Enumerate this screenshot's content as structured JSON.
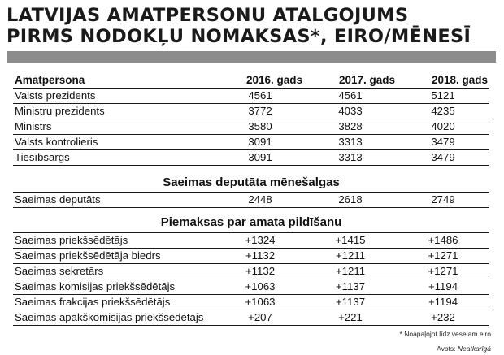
{
  "title": {
    "line1": "LATVIJAS AMATPERSONU ATALGOJUMS",
    "line2": "PIRMS NODOKĻU NOMAKSAS*, EIRO/MĒNESĪ"
  },
  "table": {
    "headers": [
      "Amatpersona",
      "2016. gads",
      "2017. gads",
      "2018. gads"
    ],
    "rows": [
      [
        "Valsts prezidents",
        "4561",
        "4561",
        "5121"
      ],
      [
        "Ministru prezidents",
        "3772",
        "4033",
        "4235"
      ],
      [
        "Ministrs",
        "3580",
        "3828",
        "4020"
      ],
      [
        "Valsts kontrolieris",
        "3091",
        "3313",
        "3479"
      ],
      [
        "Tiesībsargs",
        "3091",
        "3313",
        "3479"
      ]
    ]
  },
  "section2": {
    "title": "Saeimas deputāta mēnešalgas",
    "rows": [
      [
        "Saeimas deputāts",
        "2448",
        "2618",
        "2749"
      ]
    ]
  },
  "section3": {
    "title": "Piemaksas par amata pildīšanu",
    "rows": [
      [
        "Saeimas priekšsēdētājs",
        "+1324",
        "+1415",
        "+1486"
      ],
      [
        "Saeimas priekšsēdētāja biedrs",
        "+1132",
        "+1211",
        "+1271"
      ],
      [
        "Saeimas sekretārs",
        "+1132",
        "+1211",
        "+1271"
      ],
      [
        "Saeimas komisijas priekšsēdētājs",
        "+1063",
        "+1137",
        "+1194"
      ],
      [
        "Saeimas frakcijas priekšsēdētājs",
        "+1063",
        "+1137",
        "+1194"
      ],
      [
        "Saeimas apakškomisijas priekšsēdētājs",
        "+207",
        "+221",
        "+232"
      ]
    ]
  },
  "footnote": "* Noapaļojot līdz veselam eiro",
  "source": {
    "label": "Avots: ",
    "name": "Neatkarīgā"
  }
}
